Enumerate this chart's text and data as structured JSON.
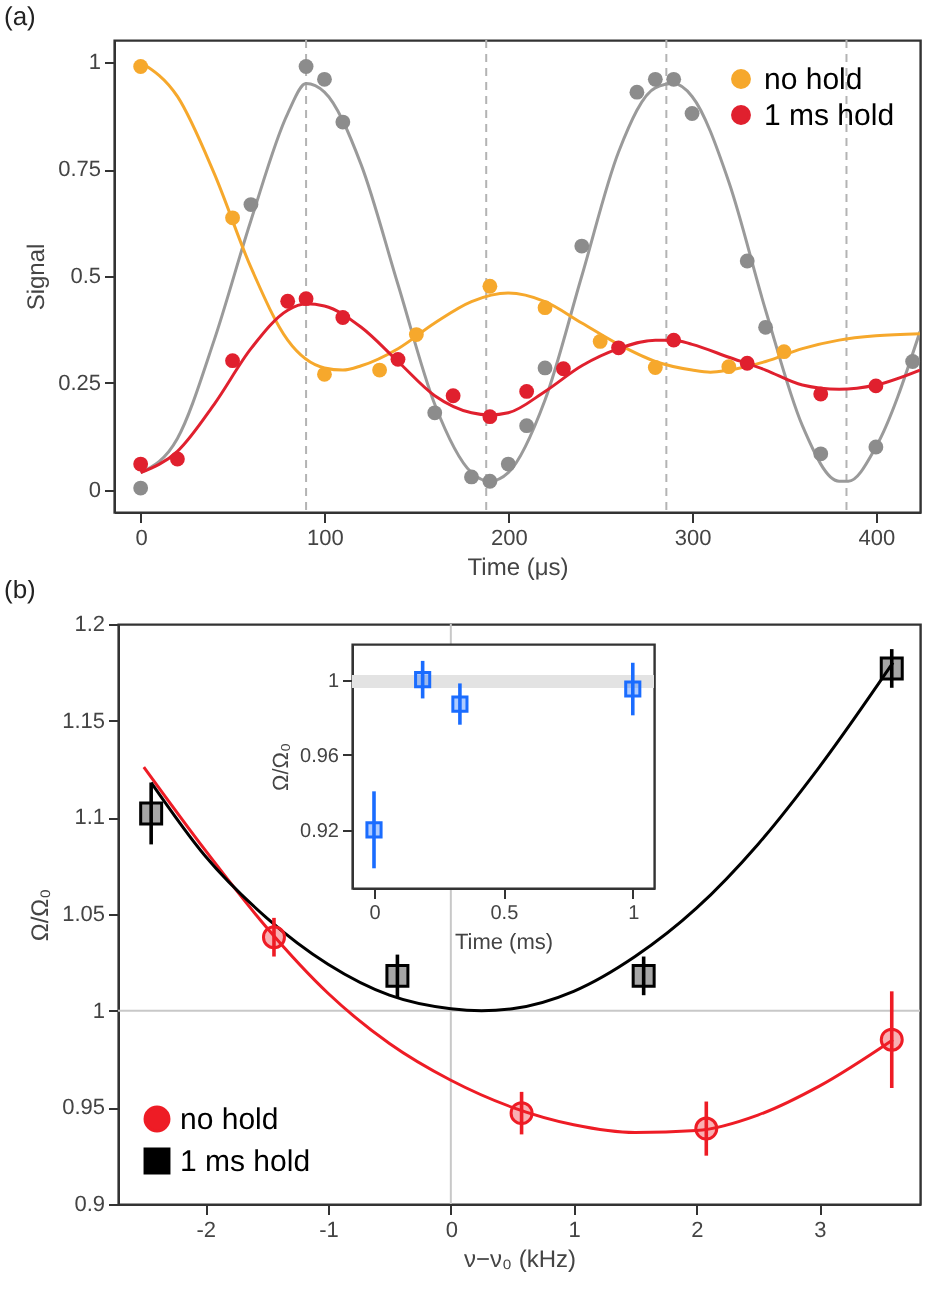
{
  "chart_data": [
    {
      "type": "scatter",
      "title": "(a)",
      "xlabel": "Time (μs)",
      "ylabel": "Signal",
      "xlim": [
        -14.5,
        424
      ],
      "ylim": [
        -0.052,
        1.052
      ],
      "xticks": [
        0,
        100,
        200,
        300,
        400
      ],
      "yticks": [
        0,
        0.25,
        0.5,
        0.75,
        1
      ],
      "legend": "top right",
      "grid": false,
      "marker": "circle",
      "ref_lines": [
        {
          "axis": "x",
          "value": 90,
          "line_style": "dashed",
          "color": "#b3b3b3"
        },
        {
          "axis": "x",
          "value": 188,
          "line_style": "dashed",
          "color": "#b3b3b3"
        },
        {
          "axis": "x",
          "value": 286,
          "line_style": "dashed",
          "color": "#b3b3b3"
        },
        {
          "axis": "x",
          "value": 384,
          "line_style": "dashed",
          "color": "#b3b3b3"
        }
      ],
      "series": [
        {
          "type": "line",
          "color": "#9a9a9a",
          "marker": "none",
          "x": [
            0,
            20,
            40,
            60,
            80,
            90,
            100,
            120,
            140,
            160,
            180,
            190,
            200,
            220,
            240,
            260,
            280,
            290,
            300,
            320,
            340,
            360,
            380,
            385,
            400,
            424
          ],
          "values": [
            0.04,
            0.12,
            0.35,
            0.63,
            0.88,
            0.95,
            0.93,
            0.76,
            0.48,
            0.2,
            0.04,
            0.02,
            0.04,
            0.21,
            0.5,
            0.79,
            0.94,
            0.95,
            0.92,
            0.72,
            0.42,
            0.15,
            0.02,
            0.02,
            0.1,
            0.37
          ]
        },
        {
          "type": "line",
          "color": "#f6a82c",
          "marker": "none",
          "x": [
            0,
            20,
            40,
            60,
            80,
            100,
            110,
            120,
            140,
            160,
            180,
            200,
            220,
            240,
            260,
            280,
            300,
            310,
            320,
            340,
            360,
            380,
            400,
            424
          ],
          "values": [
            1.0,
            0.92,
            0.74,
            0.52,
            0.35,
            0.285,
            0.28,
            0.29,
            0.33,
            0.39,
            0.44,
            0.46,
            0.44,
            0.39,
            0.34,
            0.3,
            0.28,
            0.275,
            0.28,
            0.3,
            0.33,
            0.35,
            0.36,
            0.365
          ]
        },
        {
          "type": "line",
          "color": "#e0202e",
          "marker": "none",
          "x": [
            0,
            20,
            40,
            60,
            80,
            90,
            100,
            120,
            140,
            160,
            180,
            190,
            200,
            220,
            240,
            260,
            280,
            290,
            300,
            320,
            340,
            360,
            380,
            400,
            424
          ],
          "values": [
            0.04,
            0.09,
            0.2,
            0.33,
            0.42,
            0.435,
            0.43,
            0.38,
            0.3,
            0.22,
            0.18,
            0.175,
            0.18,
            0.23,
            0.29,
            0.33,
            0.35,
            0.35,
            0.34,
            0.31,
            0.28,
            0.245,
            0.235,
            0.245,
            0.28
          ]
        },
        {
          "type": "scatter",
          "color": "#8c8c8c",
          "x": [
            0,
            60,
            90,
            100,
            110,
            160,
            180,
            190,
            200,
            210,
            220,
            240,
            270,
            280,
            290,
            300,
            330,
            340,
            370,
            400,
            420
          ],
          "values": [
            0.004,
            0.667,
            0.99,
            0.96,
            0.86,
            0.18,
            0.03,
            0.02,
            0.06,
            0.15,
            0.285,
            0.57,
            0.93,
            0.96,
            0.96,
            0.88,
            0.535,
            0.38,
            0.084,
            0.1,
            0.3
          ]
        },
        {
          "type": "scatter",
          "name": "no hold",
          "color": "#f6a82c",
          "x": [
            0,
            50,
            100,
            130,
            150,
            190,
            220,
            250,
            280,
            320,
            350
          ],
          "values": [
            0.99,
            0.636,
            0.27,
            0.28,
            0.363,
            0.476,
            0.426,
            0.347,
            0.286,
            0.288,
            0.323
          ]
        },
        {
          "type": "scatter",
          "name": "1 ms hold",
          "color": "#e0202e",
          "x": [
            0,
            20,
            50,
            80,
            90,
            110,
            140,
            170,
            190,
            210,
            230,
            260,
            290,
            330,
            370,
            400
          ],
          "values": [
            0.06,
            0.072,
            0.302,
            0.441,
            0.447,
            0.403,
            0.305,
            0.22,
            0.171,
            0.23,
            0.283,
            0.332,
            0.35,
            0.296,
            0.224,
            0.243
          ]
        }
      ]
    },
    {
      "type": "scatter",
      "title": "(b)",
      "xlabel": "ν−ν₀ (kHz)",
      "ylabel": "Ω/Ω₀",
      "xlim": [
        -2.71,
        3.82
      ],
      "ylim": [
        0.9,
        1.2
      ],
      "xticks": [
        -2,
        -1,
        0,
        1,
        2,
        3
      ],
      "yticks": [
        0.9,
        0.95,
        1,
        1.05,
        1.1,
        1.15,
        1.2
      ],
      "legend": "bottom left",
      "grid": false,
      "ref_lines": [
        {
          "axis": "y",
          "value": 1,
          "color": "#c8c8c8"
        },
        {
          "axis": "x",
          "value": 0,
          "color": "#c8c8c8"
        }
      ],
      "series": [
        {
          "type": "line",
          "color": "#ee1c25",
          "marker": "none",
          "x": [
            -2.5,
            -2,
            -1.5,
            -1,
            -0.5,
            0,
            0.5,
            1,
            1.5,
            2,
            2.5,
            3,
            3.6
          ],
          "values": [
            1.126,
            1.083,
            1.043,
            1.009,
            0.983,
            0.964,
            0.95,
            0.941,
            0.937,
            0.938,
            0.946,
            0.961,
            0.985
          ]
        },
        {
          "type": "line",
          "color": "#000000",
          "marker": "none",
          "x": [
            -2.44,
            -2,
            -1.5,
            -1,
            -0.5,
            0,
            0.25,
            0.5,
            1,
            1.5,
            2,
            2.5,
            3,
            3.6
          ],
          "values": [
            1.118,
            1.08,
            1.048,
            1.024,
            1.008,
            1.001,
            1.0,
            1.001,
            1.01,
            1.028,
            1.053,
            1.086,
            1.126,
            1.18
          ]
        },
        {
          "type": "scatter",
          "name": "no hold",
          "color": "#ee1c25",
          "marker": "circle",
          "x": [
            -1.44,
            0.576,
            2.08,
            3.59
          ],
          "values": [
            1.038,
            0.947,
            0.939,
            0.985
          ],
          "errors": [
            0.01,
            0.011,
            0.014,
            0.025
          ]
        },
        {
          "type": "scatter",
          "name": "1 ms hold",
          "color": "#000000",
          "marker": "square",
          "x": [
            -2.44,
            -0.435,
            1.57,
            3.59
          ],
          "values": [
            1.102,
            1.018,
            1.018,
            1.177
          ],
          "errors": [
            0.016,
            0.011,
            0.01,
            0.01
          ]
        }
      ]
    },
    {
      "type": "scatter",
      "xlabel": "Time (ms)",
      "ylabel": "Ω/Ω₀",
      "xlim": [
        -0.085,
        1.082
      ],
      "ylim": [
        0.889,
        1.019
      ],
      "xticks": [
        0,
        0.5,
        1
      ],
      "yticks": [
        0.92,
        0.96,
        1
      ],
      "grid": false,
      "marker": "square",
      "bands": [
        {
          "axis": "y",
          "from": 0.9955,
          "to": 1.0025,
          "color": "#e3e3e3"
        }
      ],
      "series": [
        {
          "type": "scatter",
          "color": "#1a6cff",
          "x": [
            0,
            0.188,
            0.332,
            1.0
          ],
          "values": [
            0.92,
            1.0,
            0.987,
            0.995
          ],
          "errors": [
            0.0205,
            0.01,
            0.011,
            0.014
          ]
        }
      ]
    }
  ]
}
